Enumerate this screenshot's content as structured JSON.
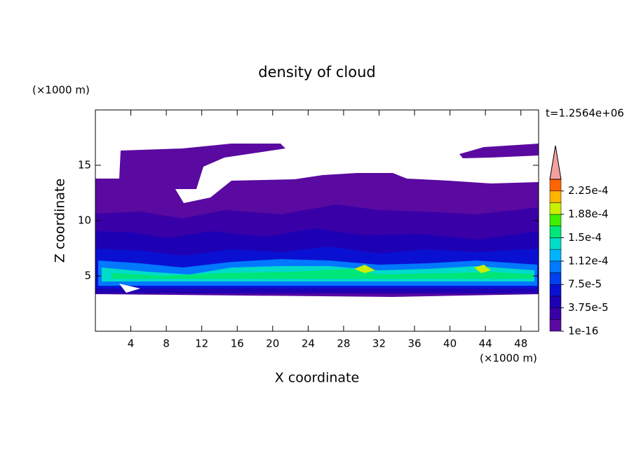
{
  "chart_data": {
    "type": "contour",
    "title": "density of cloud",
    "x_label": "X coordinate",
    "y_label": "Z coordinate",
    "x_unit": "(×1000 m)",
    "y_unit": "(×1000 m)",
    "annotation": "t=1.2564e+06",
    "xlim": [
      0,
      50
    ],
    "xticks": [
      4,
      8,
      12,
      16,
      20,
      24,
      28,
      32,
      36,
      40,
      44,
      48
    ],
    "ylim": [
      0,
      20
    ],
    "yticks": [
      5,
      10,
      15
    ],
    "colorbar": {
      "lim": [
        0,
        0.00024375
      ],
      "ticks": [
        {
          "value": 1e-16,
          "label": "1e-16"
        },
        {
          "value": 3.75e-05,
          "label": "3.75e-5"
        },
        {
          "value": 7.5e-05,
          "label": "7.5e-5"
        },
        {
          "value": 0.0001125,
          "label": "1.12e-4"
        },
        {
          "value": 0.00015,
          "label": "1.5e-4"
        },
        {
          "value": 0.0001875,
          "label": "1.88e-4"
        },
        {
          "value": 0.000225,
          "label": "2.25e-4"
        }
      ],
      "colors": [
        "#5a0aa0",
        "#3a00a8",
        "#1e00b4",
        "#0a10d2",
        "#0040f0",
        "#0078ff",
        "#00b4ff",
        "#00dcc8",
        "#00e678",
        "#3cf000",
        "#c8f000",
        "#ffb400",
        "#ff6400"
      ],
      "extend_color": "#f4a0a0"
    }
  }
}
